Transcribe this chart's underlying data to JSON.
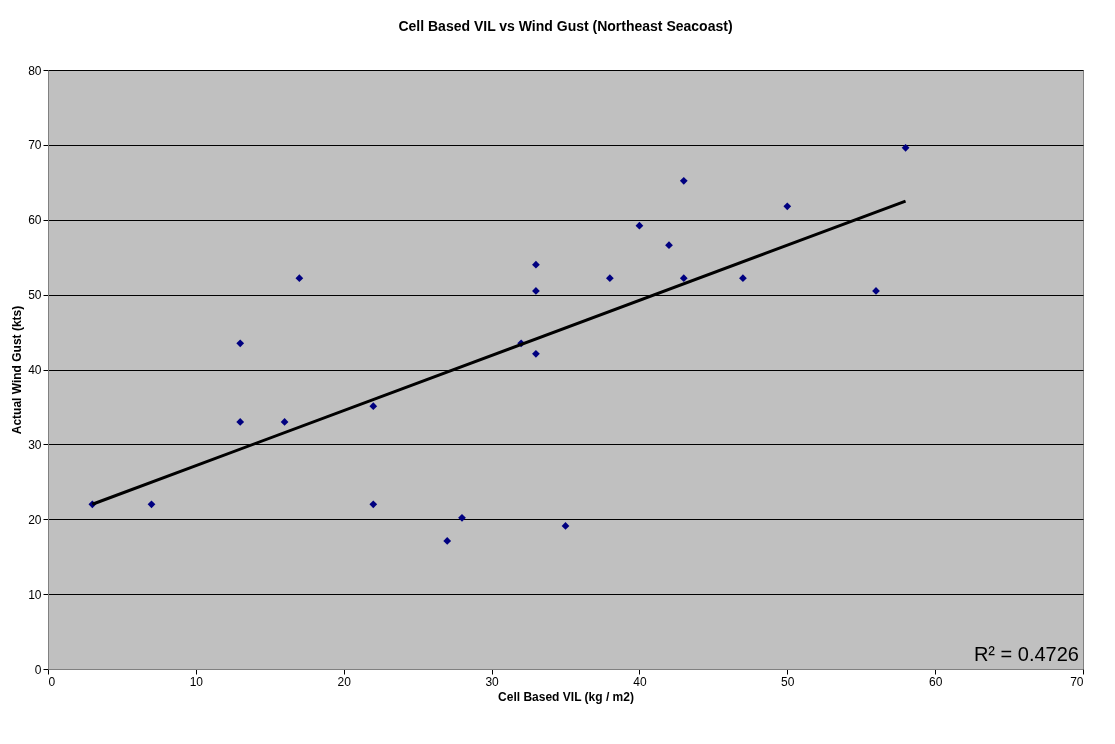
{
  "chart_data": {
    "type": "scatter",
    "title": "Cell Based VIL vs Wind Gust (Northeast Seacoast)",
    "xlabel": "Cell Based VIL (kg / m2)",
    "ylabel": "Actual Wind Gust (kts)",
    "xlim": [
      0,
      70
    ],
    "xticks": [
      0,
      10,
      20,
      30,
      40,
      50,
      60,
      70
    ],
    "ylim": [
      0,
      80
    ],
    "yticks": [
      0,
      10,
      20,
      30,
      40,
      50,
      60,
      70,
      80
    ],
    "grid": "y",
    "marker": "diamond",
    "annotations": [
      "R² = 0.4726"
    ],
    "series": [
      {
        "color": "#000080",
        "x": [
          3,
          7,
          13,
          13,
          16,
          17,
          22,
          22,
          27,
          28,
          32,
          33,
          33,
          33,
          35,
          38,
          40,
          42,
          43,
          43,
          47,
          50,
          56,
          58
        ],
        "values": [
          22,
          22,
          43.5,
          33,
          33,
          52.2,
          35.1,
          22,
          17.1,
          20.2,
          43.5,
          42.1,
          50.5,
          54,
          19.1,
          52.2,
          59.2,
          56.6,
          52.2,
          65.2,
          52.2,
          61.8,
          50.5,
          69.6
        ]
      },
      {
        "type": "line",
        "color": "#000000",
        "x": [
          3,
          58
        ],
        "values": [
          22,
          62.5
        ],
        "line_style": "solid",
        "marker": "none"
      }
    ]
  }
}
